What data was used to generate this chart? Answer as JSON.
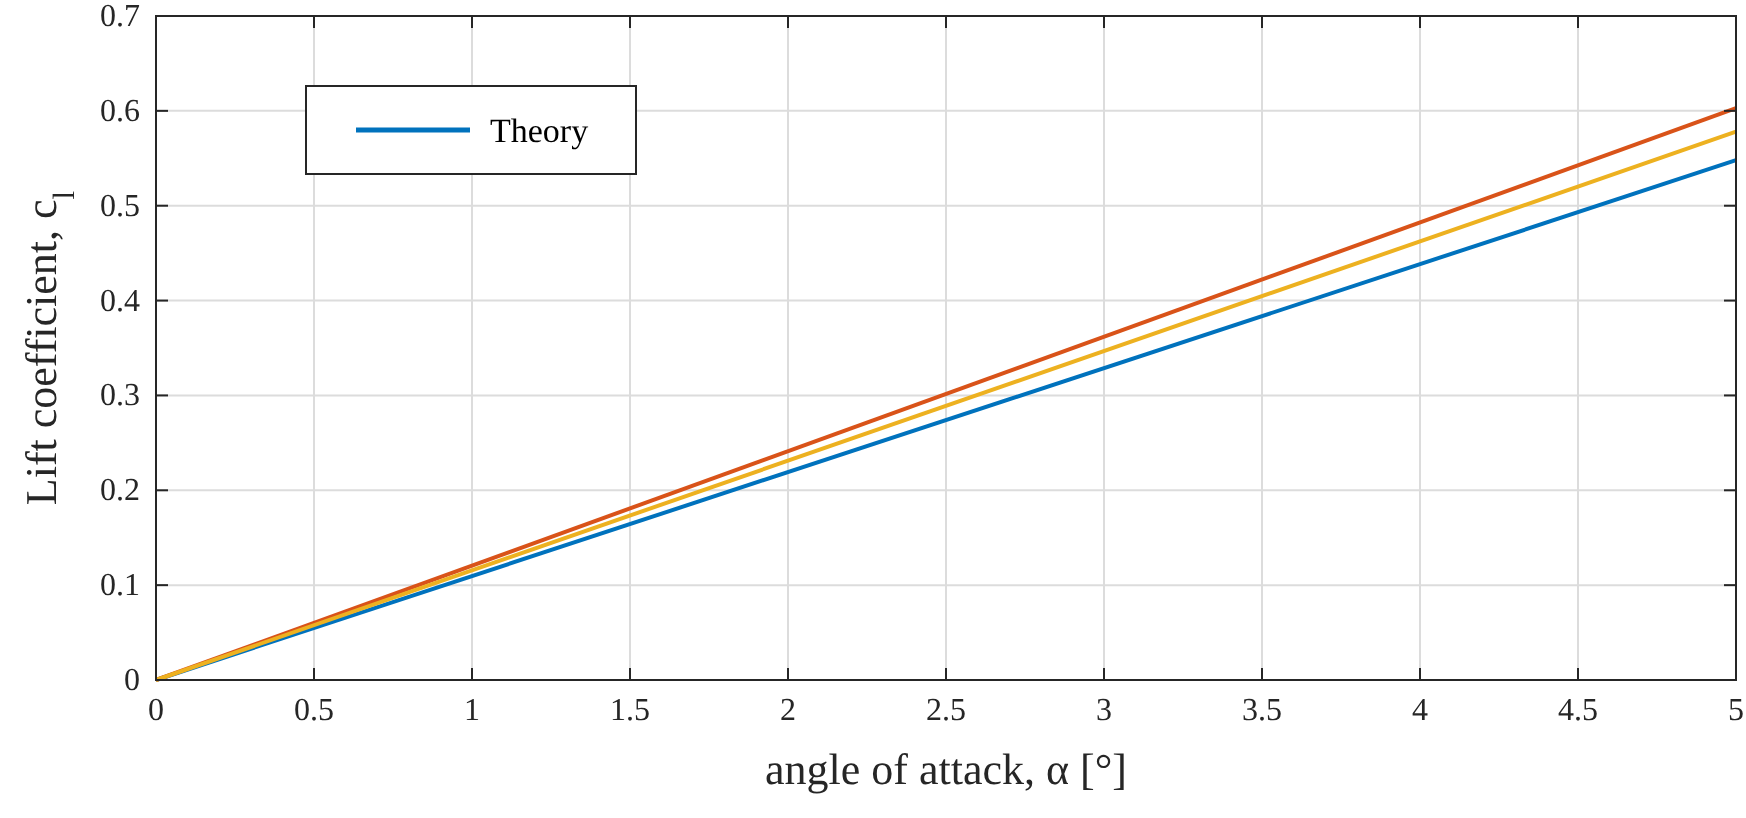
{
  "chart_data": {
    "type": "line",
    "xlabel": "angle of attack, α [°]",
    "ylabel": "Lift coefficient, c$_{l}$",
    "xlim": [
      0,
      5
    ],
    "ylim": [
      0,
      0.7
    ],
    "xticks": [
      0,
      0.5,
      1,
      1.5,
      2,
      2.5,
      3,
      3.5,
      4,
      4.5,
      5
    ],
    "yticks": [
      0,
      0.1,
      0.2,
      0.3,
      0.4,
      0.5,
      0.6,
      0.7
    ],
    "x": [
      0,
      5
    ],
    "grid": true,
    "legend": "top left",
    "marker": "none",
    "line_style": "solid",
    "series": [
      {
        "name": "Theory",
        "color": "#0072bd",
        "values": [
          0,
          0.548
        ]
      },
      {
        "color": "#d95319",
        "values": [
          0,
          0.603
        ]
      },
      {
        "color": "#edb120",
        "values": [
          0,
          0.578
        ]
      }
    ]
  }
}
